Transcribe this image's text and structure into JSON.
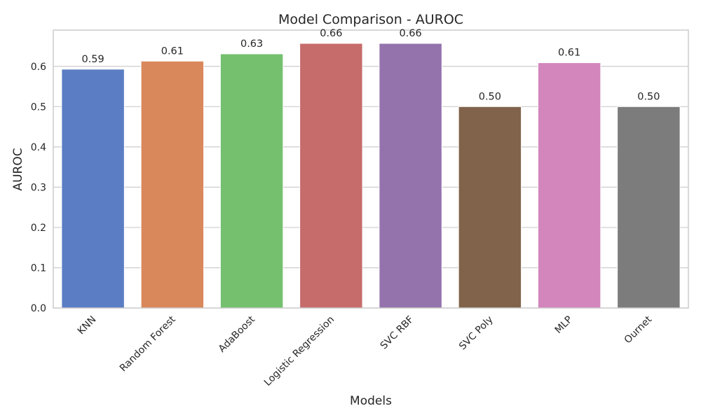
{
  "chart_data": {
    "type": "bar",
    "title": "Model Comparison - AUROC",
    "xlabel": "Models",
    "ylabel": "AUROC",
    "categories": [
      "KNN",
      "Random Forest",
      "AdaBoost",
      "Logistic Regression",
      "SVC RBF",
      "SVC Poly",
      "MLP",
      "Ournet"
    ],
    "values": [
      0.593,
      0.613,
      0.631,
      0.657,
      0.657,
      0.5,
      0.609,
      0.5
    ],
    "value_labels": [
      "0.59",
      "0.61",
      "0.63",
      "0.66",
      "0.66",
      "0.50",
      "0.61",
      "0.50"
    ],
    "colors": [
      "#5A7DC3",
      "#D9885C",
      "#74C06F",
      "#C66C6B",
      "#9473AD",
      "#80634A",
      "#D286BC",
      "#7C7C7C"
    ],
    "yticks": [
      0.0,
      0.1,
      0.2,
      0.3,
      0.4,
      0.5,
      0.6
    ],
    "ytick_labels": [
      "0.0",
      "0.1",
      "0.2",
      "0.3",
      "0.4",
      "0.5",
      "0.6"
    ],
    "ylim": [
      0,
      0.69
    ],
    "grid": true,
    "legend": false
  }
}
